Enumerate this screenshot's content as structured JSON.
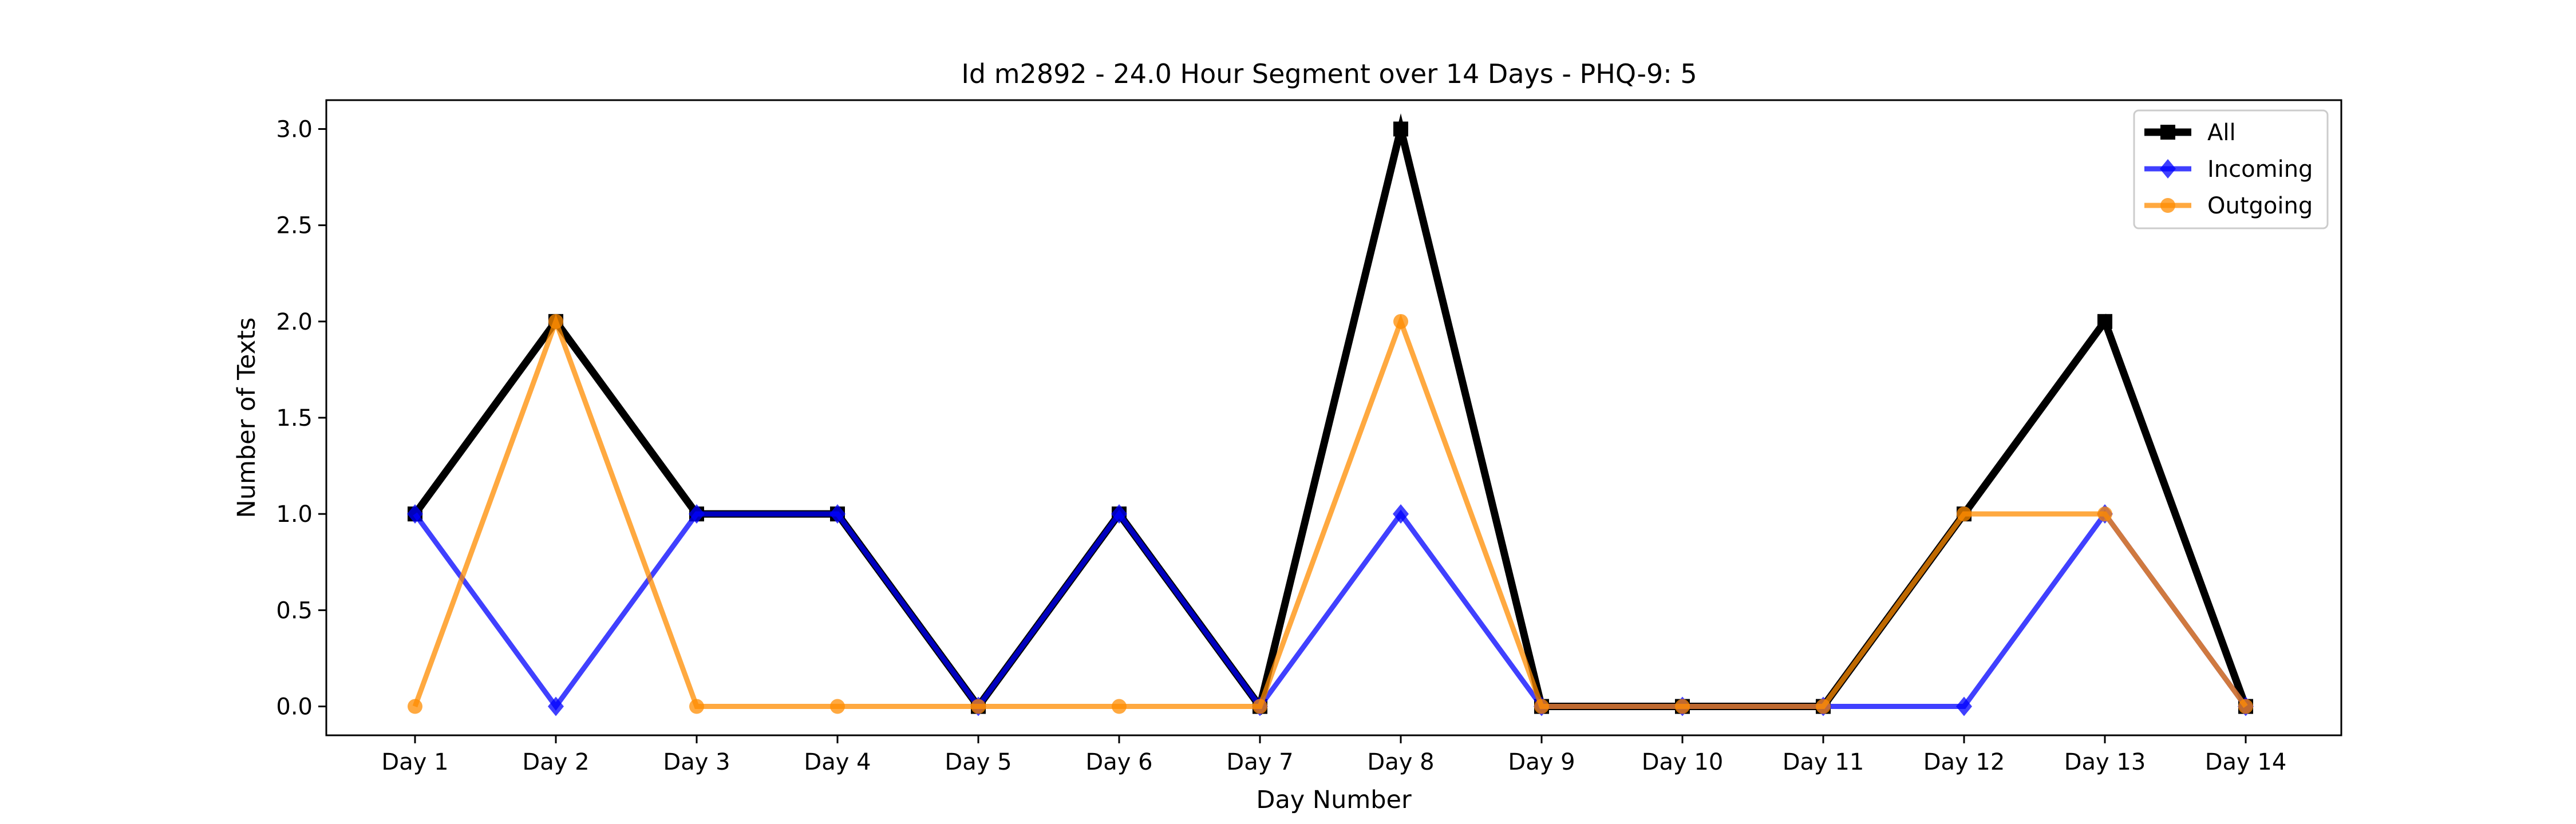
{
  "chart_data": {
    "type": "line",
    "title": "Id m2892 - 24.0 Hour Segment over 14 Days - PHQ-9: 5",
    "xlabel": "Day Number",
    "ylabel": "Number of Texts",
    "categories": [
      "Day 1",
      "Day 2",
      "Day 3",
      "Day 4",
      "Day 5",
      "Day 6",
      "Day 7",
      "Day 8",
      "Day 9",
      "Day 10",
      "Day 11",
      "Day 12",
      "Day 13",
      "Day 14"
    ],
    "yticks": [
      "0.0",
      "0.5",
      "1.0",
      "1.5",
      "2.0",
      "2.5",
      "3.0"
    ],
    "ylim": [
      -0.15,
      3.15
    ],
    "grid": false,
    "legend_position": "top-right",
    "series": [
      {
        "name": "All",
        "values": [
          1,
          2,
          1,
          1,
          0,
          1,
          0,
          3,
          0,
          0,
          0,
          1,
          2,
          0
        ],
        "color": "#000000",
        "marker": "square",
        "opacity": 1
      },
      {
        "name": "Incoming",
        "values": [
          1,
          0,
          1,
          1,
          0,
          1,
          0,
          1,
          0,
          0,
          0,
          0,
          1,
          0
        ],
        "color": "#0000ff",
        "marker": "diamond",
        "opacity": 0.75
      },
      {
        "name": "Outgoing",
        "values": [
          0,
          2,
          0,
          0,
          0,
          0,
          0,
          2,
          0,
          0,
          0,
          1,
          1,
          0
        ],
        "color": "#ff8c00",
        "marker": "circle",
        "opacity": 0.75
      }
    ]
  }
}
